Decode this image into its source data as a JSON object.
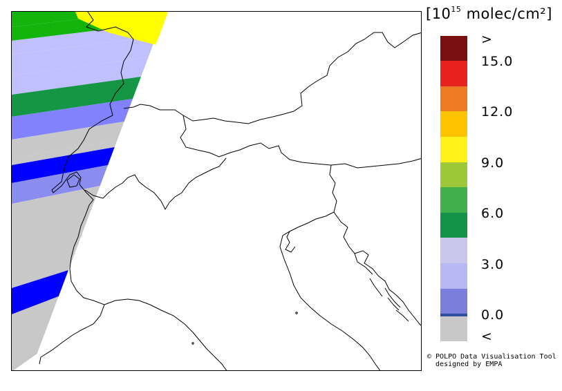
{
  "legend": {
    "unit_prefix": "[10",
    "unit_exp": "15",
    "unit_suffix": " molec/cm²]",
    "colors": {
      "above": "#7a1010",
      "c15": "#e8231f",
      "c13_5": "#ee7a24",
      "c12": "#ffc400",
      "c10_5": "#fff21a",
      "c9": "#9cc83a",
      "c7_5": "#3fb04a",
      "c6": "#13934a",
      "c4_5": "#c9c8ec",
      "c3": "#b8b9f2",
      "c1_5": "#7c7ede",
      "c0": "#2e4fa0",
      "below": "#c8c8c8"
    },
    "labels": {
      "above": ">",
      "v15": "15.0",
      "v12": "12.0",
      "v9": "9.0",
      "v6": "6.0",
      "v3": "3.0",
      "v0": "0.0",
      "below": "<"
    }
  },
  "swath_colors": {
    "green": "#13b50d",
    "yellow": "#ffff00",
    "lavender": "#c0c0ff",
    "darkgreen": "#149645",
    "periwinkle": "#8282ff",
    "grey": "#c8c8c8",
    "blue": "#0000ff",
    "lightblue": "#8a8cf0"
  },
  "credit": {
    "line1": "© POLPO Data Visualisation Tool",
    "line2": "  designed by EMPA"
  }
}
